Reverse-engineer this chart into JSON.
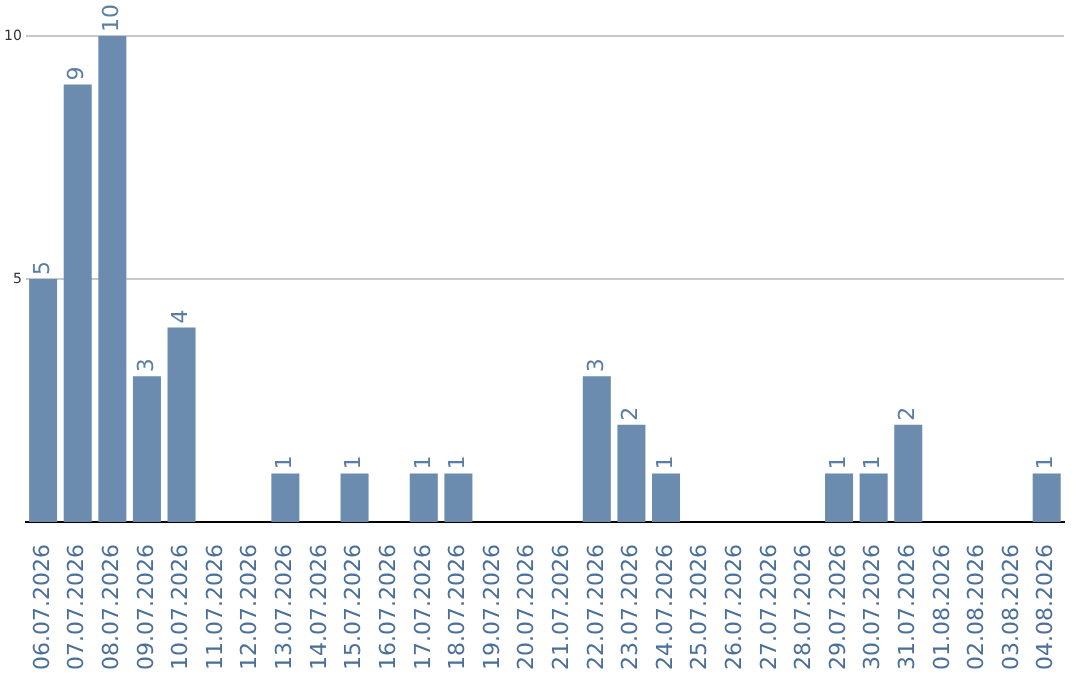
{
  "chart_data": {
    "type": "bar",
    "categories": [
      "06.07.2026",
      "07.07.2026",
      "08.07.2026",
      "09.07.2026",
      "10.07.2026",
      "11.07.2026",
      "12.07.2026",
      "13.07.2026",
      "14.07.2026",
      "15.07.2026",
      "16.07.2026",
      "17.07.2026",
      "18.07.2026",
      "19.07.2026",
      "20.07.2026",
      "21.07.2026",
      "22.07.2026",
      "23.07.2026",
      "24.07.2026",
      "25.07.2026",
      "26.07.2026",
      "27.07.2026",
      "28.07.2026",
      "29.07.2026",
      "30.07.2026",
      "31.07.2026",
      "01.08.2026",
      "02.08.2026",
      "03.08.2026",
      "04.08.2026"
    ],
    "values": [
      5,
      9,
      10,
      3,
      4,
      0,
      0,
      1,
      0,
      1,
      0,
      1,
      1,
      0,
      0,
      0,
      3,
      2,
      1,
      0,
      0,
      0,
      0,
      1,
      1,
      2,
      0,
      0,
      0,
      1
    ],
    "value_labels": [
      "5",
      "9",
      "10",
      "3",
      "4",
      null,
      null,
      "1",
      null,
      "1",
      null,
      "1",
      "1",
      null,
      null,
      null,
      "3",
      "2",
      "1",
      null,
      null,
      null,
      null,
      "1",
      "1",
      "2",
      null,
      null,
      null,
      "1"
    ],
    "color": "#6b8cae",
    "ylim": [
      0,
      10
    ],
    "yticks": [
      5,
      10
    ],
    "grid": "y",
    "legend": false
  }
}
